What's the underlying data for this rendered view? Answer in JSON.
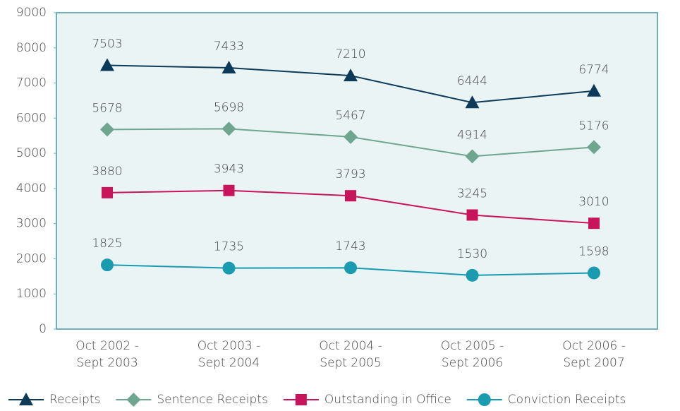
{
  "chart_data": {
    "type": "line",
    "categories": [
      "Oct 2002 - Sept 2003",
      "Oct 2003 - Sept 2004",
      "Oct 2004 - Sept 2005",
      "Oct 2005 - Sept 2006",
      "Oct 2006 - Sept 2007"
    ],
    "series": [
      {
        "name": "Receipts",
        "color": "#0e3a5a",
        "marker": "triangle",
        "values": [
          7503,
          7433,
          7210,
          6444,
          6774
        ]
      },
      {
        "name": "Sentence Receipts",
        "color": "#6fa68f",
        "marker": "diamond",
        "values": [
          5678,
          5698,
          5467,
          4914,
          5176
        ]
      },
      {
        "name": "Outstanding in Office",
        "color": "#c8145a",
        "marker": "square",
        "values": [
          3880,
          3943,
          3793,
          3245,
          3010
        ]
      },
      {
        "name": "Conviction Receipts",
        "color": "#1a9bb0",
        "marker": "circle",
        "values": [
          1825,
          1735,
          1743,
          1530,
          1598
        ]
      }
    ],
    "ylim": [
      0,
      9000
    ],
    "yticks": [
      0,
      1000,
      2000,
      3000,
      4000,
      5000,
      6000,
      7000,
      8000,
      9000
    ],
    "grid": false,
    "legend": "bottom"
  }
}
